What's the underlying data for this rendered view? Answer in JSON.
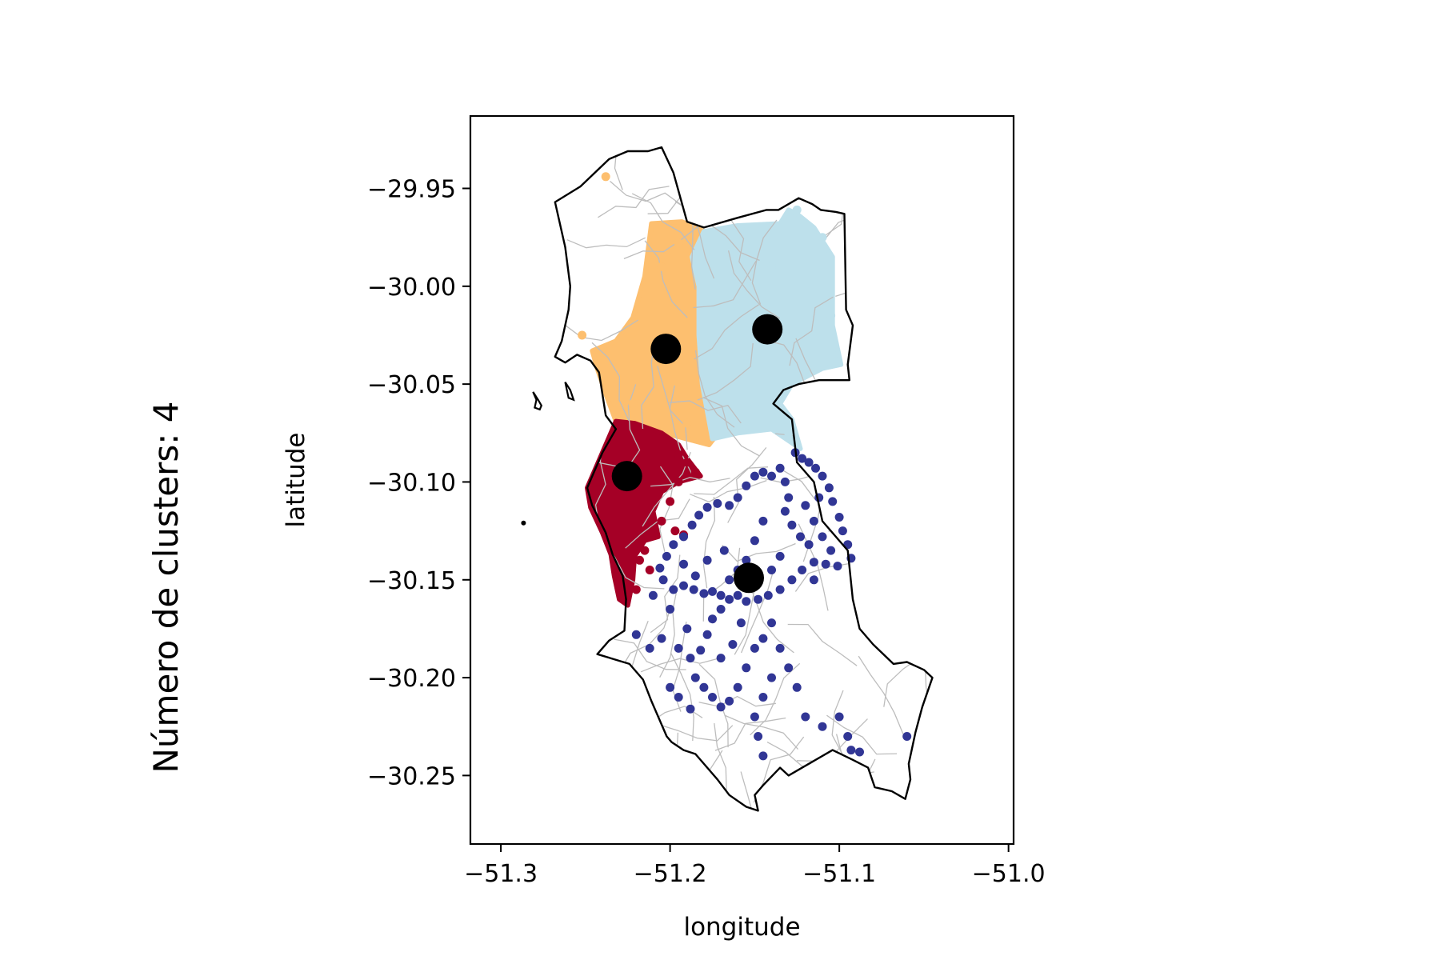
{
  "chart_data": {
    "type": "scatter",
    "side_title": "Número de clusters: 4",
    "xlabel": "longitude",
    "ylabel": "latitude",
    "xlim": [
      -51.318,
      -50.997
    ],
    "ylim": [
      -30.285,
      -29.913
    ],
    "xticks": [
      -51.3,
      -51.2,
      -51.1,
      -51.0
    ],
    "xtick_labels": [
      "−51.3",
      "−51.2",
      "−51.1",
      "−51.0"
    ],
    "yticks": [
      -29.95,
      -30.0,
      -30.05,
      -30.1,
      -30.15,
      -30.2,
      -30.25
    ],
    "ytick_labels": [
      "−29.95",
      "−30.00",
      "−30.05",
      "−30.10",
      "−30.15",
      "−30.20",
      "−30.25"
    ],
    "grid": false,
    "boundary": [
      [
        -51.253,
        -29.949
      ],
      [
        -51.236,
        -29.935
      ],
      [
        -51.225,
        -29.931
      ],
      [
        -51.213,
        -29.931
      ],
      [
        -51.205,
        -29.929
      ],
      [
        -51.198,
        -29.942
      ],
      [
        -51.19,
        -29.967
      ],
      [
        -51.18,
        -29.97
      ],
      [
        -51.16,
        -29.965
      ],
      [
        -51.143,
        -29.961
      ],
      [
        -51.136,
        -29.961
      ],
      [
        -51.124,
        -29.955
      ],
      [
        -51.116,
        -29.958
      ],
      [
        -51.111,
        -29.961
      ],
      [
        -51.102,
        -29.962
      ],
      [
        -51.097,
        -29.963
      ],
      [
        -51.096,
        -30.012
      ],
      [
        -51.092,
        -30.02
      ],
      [
        -51.095,
        -30.04
      ],
      [
        -51.094,
        -30.048
      ],
      [
        -51.112,
        -30.048
      ],
      [
        -51.124,
        -30.05
      ],
      [
        -51.133,
        -30.053
      ],
      [
        -51.139,
        -30.06
      ],
      [
        -51.128,
        -30.068
      ],
      [
        -51.125,
        -30.09
      ],
      [
        -51.115,
        -30.1
      ],
      [
        -51.11,
        -30.12
      ],
      [
        -51.095,
        -30.135
      ],
      [
        -51.092,
        -30.16
      ],
      [
        -51.088,
        -30.175
      ],
      [
        -51.08,
        -30.183
      ],
      [
        -51.068,
        -30.193
      ],
      [
        -51.06,
        -30.192
      ],
      [
        -51.05,
        -30.196
      ],
      [
        -51.045,
        -30.2
      ],
      [
        -51.051,
        -30.215
      ],
      [
        -51.055,
        -30.228
      ],
      [
        -51.059,
        -30.244
      ],
      [
        -51.058,
        -30.252
      ],
      [
        -51.061,
        -30.262
      ],
      [
        -51.069,
        -30.258
      ],
      [
        -51.079,
        -30.256
      ],
      [
        -51.083,
        -30.246
      ],
      [
        -51.092,
        -30.242
      ],
      [
        -51.104,
        -30.237
      ],
      [
        -51.12,
        -30.245
      ],
      [
        -51.13,
        -30.25
      ],
      [
        -51.135,
        -30.246
      ],
      [
        -51.145,
        -30.255
      ],
      [
        -51.15,
        -30.26
      ],
      [
        -51.148,
        -30.268
      ],
      [
        -51.155,
        -30.266
      ],
      [
        -51.165,
        -30.26
      ],
      [
        -51.172,
        -30.252
      ],
      [
        -51.185,
        -30.239
      ],
      [
        -51.192,
        -30.237
      ],
      [
        -51.199,
        -30.233
      ],
      [
        -51.202,
        -30.23
      ],
      [
        -51.211,
        -30.212
      ],
      [
        -51.216,
        -30.201
      ],
      [
        -51.224,
        -30.193
      ],
      [
        -51.243,
        -30.188
      ],
      [
        -51.236,
        -30.181
      ],
      [
        -51.227,
        -30.176
      ],
      [
        -51.226,
        -30.16
      ],
      [
        -51.228,
        -30.148
      ],
      [
        -51.234,
        -30.137
      ],
      [
        -51.238,
        -30.126
      ],
      [
        -51.246,
        -30.112
      ],
      [
        -51.249,
        -30.103
      ],
      [
        -51.24,
        -30.085
      ],
      [
        -51.232,
        -30.073
      ],
      [
        -51.238,
        -30.066
      ],
      [
        -51.24,
        -30.055
      ],
      [
        -51.242,
        -30.044
      ],
      [
        -51.247,
        -30.038
      ],
      [
        -51.255,
        -30.035
      ],
      [
        -51.262,
        -30.039
      ],
      [
        -51.268,
        -30.036
      ],
      [
        -51.264,
        -30.028
      ],
      [
        -51.26,
        -30.012
      ],
      [
        -51.259,
        -30.0
      ],
      [
        -51.262,
        -29.98
      ],
      [
        -51.268,
        -29.957
      ],
      [
        -51.253,
        -29.949
      ]
    ],
    "islands": [
      [
        [
          -51.281,
          -30.054
        ],
        [
          -51.278,
          -30.058
        ],
        [
          -51.276,
          -30.061
        ],
        [
          -51.277,
          -30.063
        ],
        [
          -51.28,
          -30.062
        ],
        [
          -51.279,
          -30.058
        ],
        [
          -51.281,
          -30.054
        ]
      ],
      [
        [
          -51.262,
          -30.049
        ],
        [
          -51.259,
          -30.053
        ],
        [
          -51.257,
          -30.058
        ],
        [
          -51.26,
          -30.057
        ],
        [
          -51.262,
          -30.049
        ]
      ]
    ],
    "centroid_color": "#000000",
    "road_color": "#bdbdbd",
    "boundary_color": "#000000",
    "series": [
      {
        "color": "#fdbf6f",
        "region": [
          [
            -51.211,
            -29.968
          ],
          [
            -51.193,
            -29.967
          ],
          [
            -51.18,
            -29.972
          ],
          [
            -51.187,
            -29.985
          ],
          [
            -51.183,
            -30.0
          ],
          [
            -51.183,
            -30.025
          ],
          [
            -51.181,
            -30.05
          ],
          [
            -51.178,
            -30.062
          ],
          [
            -51.169,
            -30.072
          ],
          [
            -51.177,
            -30.081
          ],
          [
            -51.199,
            -30.076
          ],
          [
            -51.221,
            -30.07
          ],
          [
            -51.232,
            -30.069
          ],
          [
            -51.238,
            -30.055
          ],
          [
            -51.243,
            -30.042
          ],
          [
            -51.246,
            -30.033
          ],
          [
            -51.232,
            -30.028
          ],
          [
            -51.222,
            -30.016
          ],
          [
            -51.215,
            -29.995
          ],
          [
            -51.211,
            -29.968
          ]
        ],
        "points": [
          [
            -51.238,
            -29.944
          ],
          [
            -51.233,
            -30.049
          ],
          [
            -51.252,
            -30.025
          ],
          [
            -51.205,
            -29.99
          ],
          [
            -51.195,
            -29.978
          ],
          [
            -51.222,
            -30.06
          ],
          [
            -51.19,
            -30.07
          ]
        ]
      },
      {
        "color": "#bde0eb",
        "region": [
          [
            -51.18,
            -29.972
          ],
          [
            -51.16,
            -29.969
          ],
          [
            -51.135,
            -29.968
          ],
          [
            -51.13,
            -29.961
          ],
          [
            -51.125,
            -29.963
          ],
          [
            -51.115,
            -29.97
          ],
          [
            -51.104,
            -29.985
          ],
          [
            -51.104,
            -30.02
          ],
          [
            -51.099,
            -30.04
          ],
          [
            -51.11,
            -30.042
          ],
          [
            -51.128,
            -30.05
          ],
          [
            -51.135,
            -30.06
          ],
          [
            -51.128,
            -30.068
          ],
          [
            -51.123,
            -30.083
          ],
          [
            -51.14,
            -30.073
          ],
          [
            -51.16,
            -30.075
          ],
          [
            -51.175,
            -30.078
          ],
          [
            -51.181,
            -30.05
          ],
          [
            -51.183,
            -30.025
          ],
          [
            -51.183,
            -30.0
          ],
          [
            -51.187,
            -29.985
          ],
          [
            -51.18,
            -29.972
          ]
        ],
        "points": [
          [
            -51.125,
            -29.961
          ],
          [
            -51.11,
            -29.975
          ],
          [
            -51.17,
            -29.98
          ],
          [
            -51.14,
            -29.99
          ],
          [
            -51.105,
            -30.015
          ],
          [
            -51.15,
            -30.06
          ],
          [
            -51.13,
            -30.075
          ]
        ]
      },
      {
        "color": "#a50026",
        "region": [
          [
            -51.232,
            -30.069
          ],
          [
            -51.221,
            -30.07
          ],
          [
            -51.205,
            -30.075
          ],
          [
            -51.195,
            -30.081
          ],
          [
            -51.19,
            -30.088
          ],
          [
            -51.182,
            -30.097
          ],
          [
            -51.195,
            -30.1
          ],
          [
            -51.205,
            -30.105
          ],
          [
            -51.21,
            -30.115
          ],
          [
            -51.207,
            -30.128
          ],
          [
            -51.215,
            -30.13
          ],
          [
            -51.221,
            -30.138
          ],
          [
            -51.222,
            -30.15
          ],
          [
            -51.225,
            -30.163
          ],
          [
            -51.23,
            -30.16
          ],
          [
            -51.233,
            -30.148
          ],
          [
            -51.235,
            -30.137
          ],
          [
            -51.24,
            -30.126
          ],
          [
            -51.247,
            -30.113
          ],
          [
            -51.249,
            -30.103
          ],
          [
            -51.24,
            -30.085
          ],
          [
            -51.232,
            -30.069
          ]
        ],
        "points": [
          [
            -51.19,
            -30.09
          ],
          [
            -51.185,
            -30.095
          ],
          [
            -51.195,
            -30.1
          ],
          [
            -51.2,
            -30.11
          ],
          [
            -51.205,
            -30.12
          ],
          [
            -51.197,
            -30.125
          ],
          [
            -51.192,
            -30.127
          ],
          [
            -51.215,
            -30.135
          ],
          [
            -51.218,
            -30.14
          ],
          [
            -51.212,
            -30.145
          ],
          [
            -51.22,
            -30.155
          ],
          [
            -51.226,
            -30.16
          ],
          [
            -51.2,
            -30.082
          ],
          [
            -51.195,
            -30.086
          ]
        ]
      },
      {
        "color": "#313695",
        "points": [
          [
            -51.126,
            -30.085
          ],
          [
            -51.122,
            -30.088
          ],
          [
            -51.118,
            -30.09
          ],
          [
            -51.114,
            -30.093
          ],
          [
            -51.11,
            -30.097
          ],
          [
            -51.106,
            -30.103
          ],
          [
            -51.104,
            -30.11
          ],
          [
            -51.1,
            -30.118
          ],
          [
            -51.098,
            -30.125
          ],
          [
            -51.095,
            -30.132
          ],
          [
            -51.093,
            -30.139
          ],
          [
            -51.101,
            -30.143
          ],
          [
            -51.108,
            -30.142
          ],
          [
            -51.115,
            -30.141
          ],
          [
            -51.122,
            -30.145
          ],
          [
            -51.128,
            -30.15
          ],
          [
            -51.135,
            -30.155
          ],
          [
            -51.142,
            -30.158
          ],
          [
            -51.148,
            -30.16
          ],
          [
            -51.155,
            -30.161
          ],
          [
            -51.16,
            -30.158
          ],
          [
            -51.165,
            -30.16
          ],
          [
            -51.17,
            -30.158
          ],
          [
            -51.175,
            -30.156
          ],
          [
            -51.18,
            -30.157
          ],
          [
            -51.186,
            -30.155
          ],
          [
            -51.192,
            -30.153
          ],
          [
            -51.198,
            -30.155
          ],
          [
            -51.204,
            -30.15
          ],
          [
            -51.206,
            -30.144
          ],
          [
            -51.202,
            -30.138
          ],
          [
            -51.198,
            -30.132
          ],
          [
            -51.192,
            -30.128
          ],
          [
            -51.187,
            -30.122
          ],
          [
            -51.183,
            -30.117
          ],
          [
            -51.178,
            -30.113
          ],
          [
            -51.172,
            -30.111
          ],
          [
            -51.165,
            -30.112
          ],
          [
            -51.16,
            -30.108
          ],
          [
            -51.155,
            -30.102
          ],
          [
            -51.15,
            -30.097
          ],
          [
            -51.145,
            -30.095
          ],
          [
            -51.14,
            -30.097
          ],
          [
            -51.135,
            -30.093
          ],
          [
            -51.132,
            -30.1
          ],
          [
            -51.13,
            -30.108
          ],
          [
            -51.132,
            -30.115
          ],
          [
            -51.128,
            -30.122
          ],
          [
            -51.123,
            -30.128
          ],
          [
            -51.118,
            -30.132
          ],
          [
            -51.11,
            -30.128
          ],
          [
            -51.115,
            -30.12
          ],
          [
            -51.12,
            -30.112
          ],
          [
            -51.145,
            -30.12
          ],
          [
            -51.15,
            -30.13
          ],
          [
            -51.155,
            -30.14
          ],
          [
            -51.15,
            -30.15
          ],
          [
            -51.14,
            -30.145
          ],
          [
            -51.135,
            -30.138
          ],
          [
            -51.16,
            -30.145
          ],
          [
            -51.165,
            -30.15
          ],
          [
            -51.17,
            -30.165
          ],
          [
            -51.175,
            -30.17
          ],
          [
            -51.178,
            -30.178
          ],
          [
            -51.182,
            -30.186
          ],
          [
            -51.188,
            -30.19
          ],
          [
            -51.195,
            -30.185
          ],
          [
            -51.19,
            -30.175
          ],
          [
            -51.2,
            -30.165
          ],
          [
            -51.21,
            -30.158
          ],
          [
            -51.185,
            -30.2
          ],
          [
            -51.18,
            -30.205
          ],
          [
            -51.175,
            -30.21
          ],
          [
            -51.17,
            -30.215
          ],
          [
            -51.165,
            -30.212
          ],
          [
            -51.16,
            -30.205
          ],
          [
            -51.155,
            -30.195
          ],
          [
            -51.15,
            -30.185
          ],
          [
            -51.145,
            -30.18
          ],
          [
            -51.14,
            -30.172
          ],
          [
            -51.135,
            -30.185
          ],
          [
            -51.13,
            -30.195
          ],
          [
            -51.125,
            -30.205
          ],
          [
            -51.14,
            -30.2
          ],
          [
            -51.145,
            -30.21
          ],
          [
            -51.15,
            -30.22
          ],
          [
            -51.148,
            -30.23
          ],
          [
            -51.145,
            -30.24
          ],
          [
            -51.12,
            -30.22
          ],
          [
            -51.11,
            -30.225
          ],
          [
            -51.1,
            -30.22
          ],
          [
            -51.095,
            -30.23
          ],
          [
            -51.093,
            -30.237
          ],
          [
            -51.088,
            -30.238
          ],
          [
            -51.06,
            -30.23
          ],
          [
            -51.17,
            -30.19
          ],
          [
            -51.163,
            -30.183
          ],
          [
            -51.158,
            -30.172
          ],
          [
            -51.185,
            -30.148
          ],
          [
            -51.178,
            -30.14
          ],
          [
            -51.168,
            -30.135
          ],
          [
            -51.192,
            -30.142
          ],
          [
            -51.115,
            -30.15
          ],
          [
            -51.105,
            -30.135
          ],
          [
            -51.112,
            -30.108
          ],
          [
            -51.195,
            -30.21
          ],
          [
            -51.2,
            -30.205
          ],
          [
            -51.188,
            -30.216
          ],
          [
            -51.205,
            -30.18
          ],
          [
            -51.212,
            -30.185
          ],
          [
            -51.22,
            -30.178
          ]
        ]
      }
    ],
    "centroids": [
      [
        -51.2025,
        -30.032
      ],
      [
        -51.1425,
        -30.022
      ],
      [
        -51.2255,
        -30.097
      ],
      [
        -51.1535,
        -30.149
      ]
    ]
  }
}
